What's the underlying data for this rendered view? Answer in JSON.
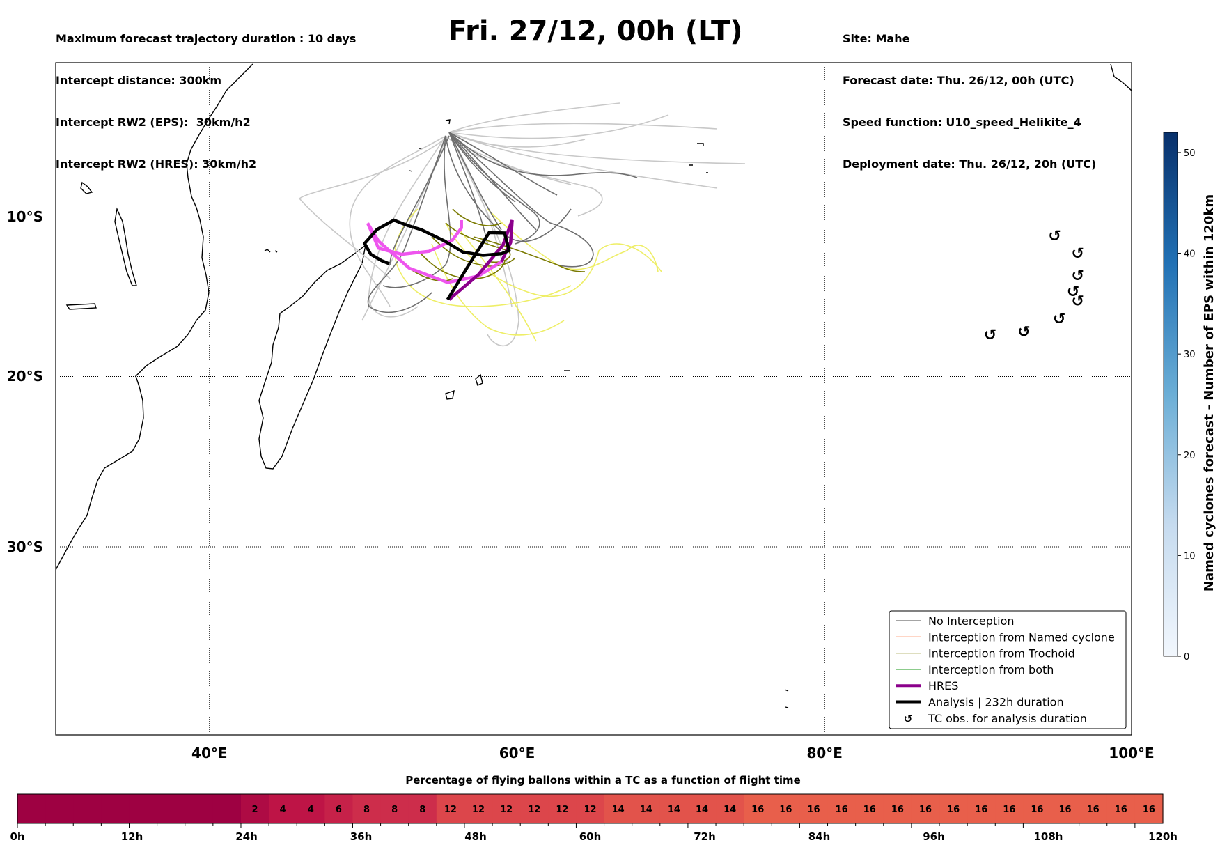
{
  "header": {
    "title": "Fri. 27/12, 00h (LT)",
    "left_lines": [
      "Maximum forecast trajectory duration : 10 days",
      "Intercept distance: 300km",
      "Intercept RW2 (EPS):  30km/h2",
      "Intercept RW2 (HRES): 30km/h2"
    ],
    "right_lines": [
      "Site: Mahe",
      "Forecast date: Thu. 26/12, 00h (UTC)",
      "Speed function: U10_speed_Helikite_4",
      "Deployment date: Thu. 26/12, 20h (UTC)"
    ]
  },
  "map": {
    "lon_ticks": [
      "40°E",
      "60°E",
      "80°E",
      "100°E"
    ],
    "lat_ticks": [
      "10°S",
      "20°S",
      "30°S"
    ],
    "lon_range": [
      30,
      100
    ],
    "lat_range": [
      -43.8,
      0.2
    ],
    "colors": {
      "no_interception": "#6e6e6e",
      "named_cyclone": "#ff5a1e",
      "trochoid": "#7a7a00",
      "both": "#1a9a1a",
      "hres": "#8b008b",
      "hres_light": "#ee55ee",
      "analysis": "#000000",
      "eps_light": "#c8c8c8",
      "trochoid_light": "#eeee66"
    },
    "tc_observations_lonlat": [
      [
        95,
        -11.5
      ],
      [
        96.5,
        -12.6
      ],
      [
        96.5,
        -14
      ],
      [
        96.2,
        -15
      ],
      [
        96.5,
        -15.6
      ],
      [
        95.3,
        -16.7
      ],
      [
        93,
        -17.5
      ],
      [
        90.8,
        -17.7
      ]
    ],
    "hres_track_lonlat": [
      [
        55.6,
        -4.7
      ],
      [
        57.5,
        -6.3
      ],
      [
        59.1,
        -8.2
      ],
      [
        59.7,
        -10.2
      ],
      [
        59.6,
        -11.6
      ],
      [
        59,
        -12.8
      ],
      [
        57.5,
        -13.7
      ],
      [
        55.5,
        -14.1
      ],
      [
        53,
        -13.2
      ],
      [
        51,
        -11.5
      ],
      [
        50.3,
        -9.6
      ],
      [
        51,
        -8
      ],
      [
        52.5,
        -7.6
      ],
      [
        54.3,
        -7.8
      ],
      [
        55.8,
        -8.5
      ],
      [
        56.4,
        -9.3
      ],
      [
        56.4,
        -9.8
      ]
    ],
    "analysis_track_lonlat": [
      [
        55.5,
        -4.7
      ],
      [
        56.8,
        -6.8
      ],
      [
        58.2,
        -9
      ],
      [
        59.2,
        -11
      ],
      [
        59.5,
        -12.1
      ],
      [
        59,
        -12.3
      ],
      [
        57.8,
        -12.4
      ],
      [
        56.5,
        -12.2
      ],
      [
        55.3,
        -11.5
      ],
      [
        53.8,
        -10.8
      ],
      [
        52.8,
        -10.5
      ],
      [
        52,
        -9.8
      ],
      [
        50.9,
        -9.2
      ],
      [
        50.1,
        -8.3
      ],
      [
        50.5,
        -7.6
      ],
      [
        51.2,
        -7.2
      ],
      [
        51.7,
        -7
      ]
    ],
    "legend": [
      {
        "label": "No Interception",
        "kind": "line",
        "color": "#6e6e6e",
        "width": 1.2
      },
      {
        "label": "Interception from Named cyclone",
        "kind": "line",
        "color": "#ff5a1e",
        "width": 1.2
      },
      {
        "label": "Interception from Trochoid",
        "kind": "line",
        "color": "#7a7a00",
        "width": 1.2
      },
      {
        "label": "Interception from both",
        "kind": "line",
        "color": "#1a9a1a",
        "width": 1.2
      },
      {
        "label": "HRES",
        "kind": "line",
        "color": "#8b008b",
        "width": 4
      },
      {
        "label": "Analysis | 232h duration",
        "kind": "line",
        "color": "#000000",
        "width": 4
      },
      {
        "label": "TC obs. for analysis duration",
        "kind": "symbol",
        "color": "#000000",
        "symbol": "↺"
      }
    ]
  },
  "colorbar_right": {
    "label": "Named cyclones forecast - Number of EPS within 120km",
    "ticks": [
      "0",
      "10",
      "20",
      "30",
      "40",
      "50"
    ],
    "max": 52,
    "color_low": "#f2f7fd",
    "color_high": "#08306b"
  },
  "bottom_bar": {
    "title": "Percentage of flying ballons within a TC as a function of flight time",
    "time_ticks": [
      "0h",
      "12h",
      "24h",
      "36h",
      "48h",
      "60h",
      "72h",
      "84h",
      "96h",
      "108h",
      "120h"
    ],
    "cells": [
      "",
      "",
      "",
      "",
      "",
      "",
      "",
      "",
      "2",
      "4",
      "4",
      "6",
      "8",
      "8",
      "8",
      "12",
      "12",
      "12",
      "12",
      "12",
      "12",
      "14",
      "14",
      "14",
      "14",
      "14",
      "16",
      "16",
      "16",
      "16",
      "16",
      "16",
      "16",
      "16",
      "16",
      "16",
      "16",
      "16",
      "16",
      "16",
      "16"
    ],
    "values": [
      0,
      0,
      0,
      0,
      0,
      0,
      0,
      0,
      2,
      4,
      4,
      6,
      8,
      8,
      8,
      12,
      12,
      12,
      12,
      12,
      12,
      14,
      14,
      14,
      14,
      14,
      16,
      16,
      16,
      16,
      16,
      16,
      16,
      16,
      16,
      16,
      16,
      16,
      16,
      16,
      16
    ]
  }
}
